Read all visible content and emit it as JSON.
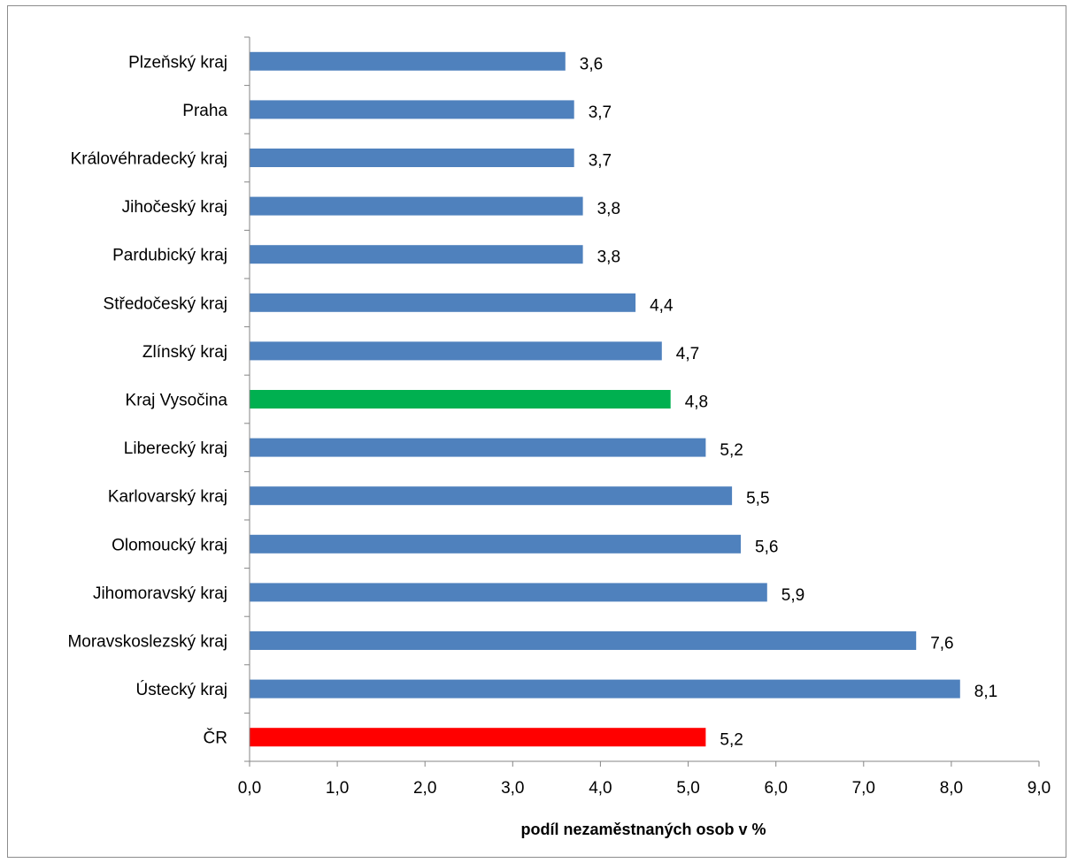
{
  "chart_data": {
    "type": "bar",
    "orientation": "horizontal",
    "title": "",
    "xlabel": "podíl nezaměstnaných osob v %",
    "ylabel": "",
    "xlim": [
      0,
      9
    ],
    "x_ticks": [
      0,
      1,
      2,
      3,
      4,
      5,
      6,
      7,
      8,
      9
    ],
    "x_tick_labels": [
      "0,0",
      "1,0",
      "2,0",
      "3,0",
      "4,0",
      "5,0",
      "6,0",
      "7,0",
      "8,0",
      "9,0"
    ],
    "grid": false,
    "legend": "none",
    "categories": [
      "Plzeňský kraj",
      "Praha",
      "Královéhradecký kraj",
      "Jihočeský kraj",
      "Pardubický kraj",
      "Středočeský kraj",
      "Zlínský kraj",
      "Kraj Vysočina",
      "Liberecký kraj",
      "Karlovarský kraj",
      "Olomoucký kraj",
      "Jihomoravský kraj",
      "Moravskoslezský kraj",
      "Ústecký kraj",
      "ČR"
    ],
    "values": [
      3.6,
      3.7,
      3.7,
      3.8,
      3.8,
      4.4,
      4.7,
      4.8,
      5.2,
      5.5,
      5.6,
      5.9,
      7.6,
      8.1,
      5.2
    ],
    "value_labels": [
      "3,6",
      "3,7",
      "3,7",
      "3,8",
      "3,8",
      "4,4",
      "4,7",
      "4,8",
      "5,2",
      "5,5",
      "5,6",
      "5,9",
      "7,6",
      "8,1",
      "5,2"
    ],
    "bar_colors": [
      "#4f81bd",
      "#4f81bd",
      "#4f81bd",
      "#4f81bd",
      "#4f81bd",
      "#4f81bd",
      "#4f81bd",
      "#00b050",
      "#4f81bd",
      "#4f81bd",
      "#4f81bd",
      "#4f81bd",
      "#4f81bd",
      "#4f81bd",
      "#ff0000"
    ],
    "axis_color": "#868686"
  }
}
